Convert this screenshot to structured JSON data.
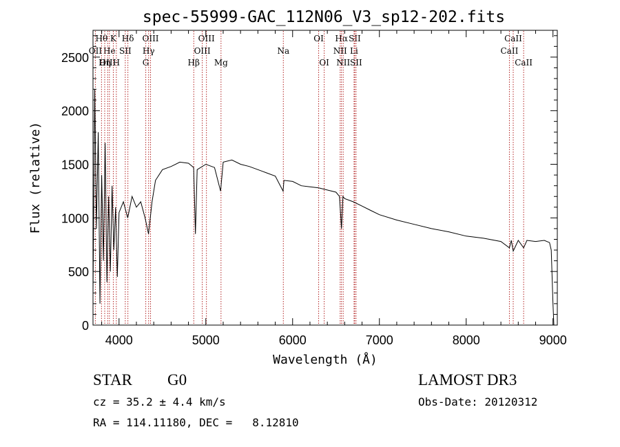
{
  "chart_data": {
    "type": "line",
    "title": "spec-55999-GAC_112N06_V3_sp12-202.fits",
    "xlabel": "Wavelength (Å)",
    "ylabel": "Flux (relative)",
    "xlim": [
      3700,
      9050
    ],
    "ylim": [
      0,
      2750
    ],
    "xticks": [
      4000,
      5000,
      6000,
      7000,
      8000,
      9000
    ],
    "yticks": [
      0,
      500,
      1000,
      1500,
      2000,
      2500
    ],
    "grid": false,
    "series": [
      {
        "name": "flux",
        "x": [
          3700,
          3720,
          3740,
          3760,
          3780,
          3800,
          3820,
          3840,
          3860,
          3880,
          3900,
          3920,
          3940,
          3960,
          3980,
          4000,
          4050,
          4100,
          4150,
          4200,
          4250,
          4300,
          4340,
          4380,
          4420,
          4500,
          4600,
          4700,
          4800,
          4860,
          4880,
          4900,
          5000,
          5100,
          5170,
          5200,
          5300,
          5400,
          5500,
          5600,
          5700,
          5800,
          5890,
          5900,
          6000,
          6100,
          6200,
          6300,
          6400,
          6500,
          6540,
          6563,
          6580,
          6600,
          6700,
          6800,
          6900,
          7000,
          7200,
          7400,
          7600,
          7800,
          8000,
          8200,
          8400,
          8498,
          8520,
          8542,
          8600,
          8662,
          8700,
          8800,
          8900,
          8960,
          8980,
          9000,
          9010
        ],
        "y": [
          300,
          2200,
          900,
          1800,
          200,
          1400,
          600,
          1700,
          400,
          1200,
          500,
          1300,
          700,
          1100,
          450,
          1050,
          1150,
          1000,
          1200,
          1100,
          1150,
          1000,
          850,
          1150,
          1350,
          1450,
          1480,
          1520,
          1510,
          1470,
          850,
          1450,
          1500,
          1470,
          1250,
          1520,
          1540,
          1500,
          1480,
          1450,
          1420,
          1390,
          1250,
          1350,
          1340,
          1300,
          1290,
          1280,
          1260,
          1240,
          1200,
          900,
          1200,
          1180,
          1150,
          1110,
          1070,
          1030,
          980,
          940,
          900,
          870,
          830,
          810,
          780,
          720,
          790,
          690,
          790,
          720,
          790,
          780,
          790,
          770,
          700,
          200,
          0
        ]
      }
    ],
    "line_markers": [
      {
        "label": "Hθ",
        "x": 3798,
        "row": 1
      },
      {
        "label": "OII",
        "x": 3727,
        "row": 2
      },
      {
        "label": "OIII",
        "x": 3869,
        "row": 3
      },
      {
        "label": "He",
        "x": 3889,
        "row": 2
      },
      {
        "label": "Hη",
        "x": 3835,
        "row": 3
      },
      {
        "label": "K",
        "x": 3934,
        "row": 1
      },
      {
        "label": "H",
        "x": 3969,
        "row": 3
      },
      {
        "label": "SII",
        "x": 4072,
        "row": 2
      },
      {
        "label": "Hδ",
        "x": 4102,
        "row": 1
      },
      {
        "label": "OIII",
        "x": 4363,
        "row": 1
      },
      {
        "label": "Hγ",
        "x": 4341,
        "row": 2
      },
      {
        "label": "G",
        "x": 4308,
        "row": 3
      },
      {
        "label": "Hβ",
        "x": 4861,
        "row": 3
      },
      {
        "label": "OIII",
        "x": 5007,
        "row": 1
      },
      {
        "label": "OIII",
        "x": 4959,
        "row": 2
      },
      {
        "label": "Mg",
        "x": 5175,
        "row": 3
      },
      {
        "label": "Na",
        "x": 5893,
        "row": 2
      },
      {
        "label": "OI",
        "x": 6300,
        "row": 1
      },
      {
        "label": "OI",
        "x": 6364,
        "row": 3
      },
      {
        "label": "Hα",
        "x": 6563,
        "row": 1
      },
      {
        "label": "SII",
        "x": 6716,
        "row": 1
      },
      {
        "label": "NII",
        "x": 6548,
        "row": 2
      },
      {
        "label": "Li",
        "x": 6708,
        "row": 2
      },
      {
        "label": "NII",
        "x": 6583,
        "row": 3
      },
      {
        "label": "SII",
        "x": 6731,
        "row": 3
      },
      {
        "label": "CaII",
        "x": 8542,
        "row": 1
      },
      {
        "label": "CaII",
        "x": 8498,
        "row": 2
      },
      {
        "label": "CaII",
        "x": 8662,
        "row": 3
      }
    ]
  },
  "info": {
    "object_class": "STAR",
    "subclass": "G0",
    "survey": "LAMOST DR3",
    "cz": "cz = 35.2 ± 4.4 km/s",
    "obs_date": "Obs-Date: 20120312",
    "coords": "RA = 114.11180, DEC =   8.12810"
  },
  "colors": {
    "marker": "#b22222",
    "axis": "#000000",
    "background": "#ffffff"
  }
}
